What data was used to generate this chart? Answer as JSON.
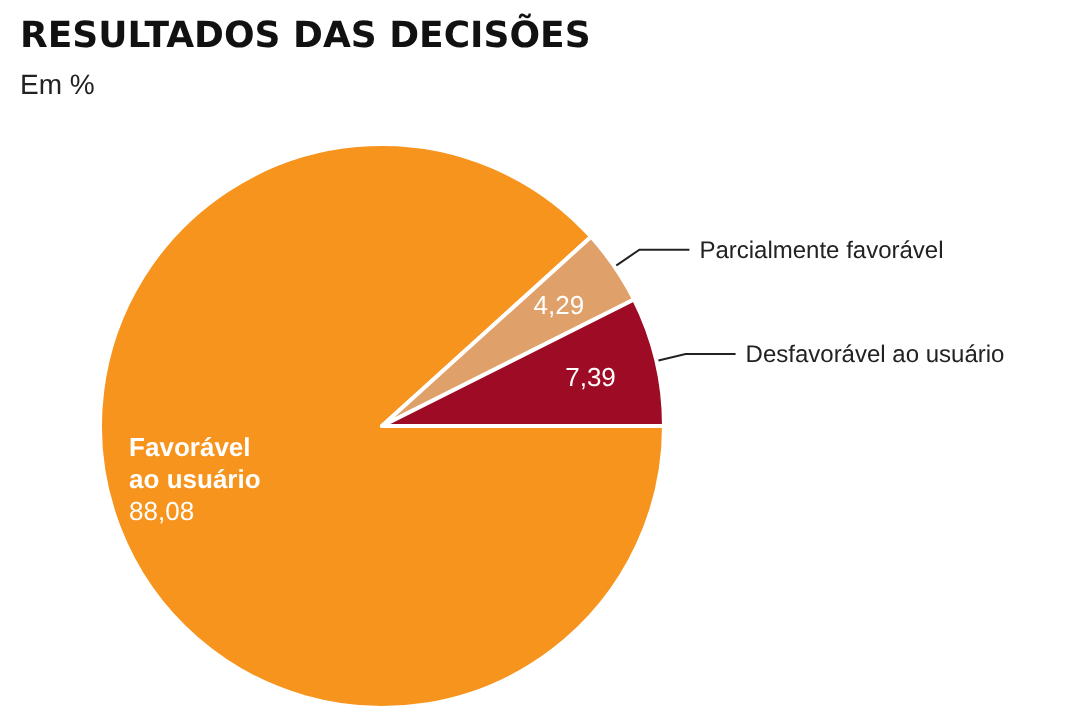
{
  "chart_data": {
    "type": "pie",
    "title": "RESULTADOS DAS DECISÕES",
    "subtitle": "Em %",
    "categories": [
      "Favorável ao usuário",
      "Parcialmente favorável",
      "Desfavorável ao usuário"
    ],
    "values": [
      88.08,
      4.29,
      7.39
    ],
    "value_labels": [
      "88,08",
      "4,29",
      "7,39"
    ],
    "colors": [
      "#f7941d",
      "#e0a06a",
      "#9e0b24"
    ],
    "legend": false
  }
}
